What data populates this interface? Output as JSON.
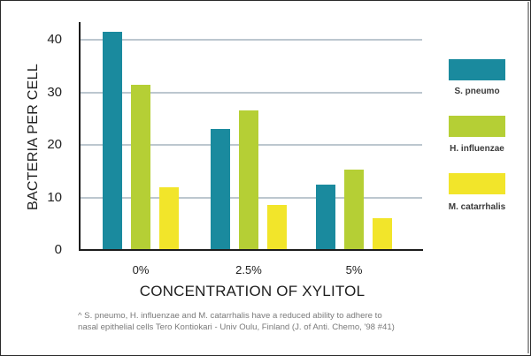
{
  "chart_data": {
    "type": "bar",
    "title": "",
    "xlabel": "CONCENTRATION OF XYLITOL",
    "ylabel": "BACTERIA PER CELL",
    "categories": [
      "0%",
      "2.5%",
      "5%"
    ],
    "series": [
      {
        "name": "S. pneumo",
        "color": "#1a8a9e",
        "values": [
          41.5,
          23,
          12.5
        ]
      },
      {
        "name": "H. influenzae",
        "color": "#b5cf35",
        "values": [
          31.5,
          26.5,
          15.3
        ]
      },
      {
        "name": "M. catarrhalis",
        "color": "#f2e52a",
        "values": [
          12,
          8.5,
          6
        ]
      }
    ],
    "yticks": [
      0,
      10,
      20,
      30,
      40
    ],
    "ylim": [
      0,
      43
    ],
    "grid": true,
    "legend_position": "right",
    "footnote": "^ S. pneumo, H. influenzae and M. catarrhalis have a reduced ability to adhere to nasal epithelial cells Tero Kontiokari - Univ Oulu, Finland (J. of Anti. Chemo, '98 #41)"
  },
  "axis": {
    "y_title": "BACTERIA PER CELL",
    "x_title": "CONCENTRATION OF XYLITOL",
    "yticks": [
      "0",
      "10",
      "20",
      "30",
      "40"
    ],
    "xticks": [
      "0%",
      "2.5%",
      "5%"
    ]
  },
  "legend": {
    "items": [
      {
        "label": "S. pneumo",
        "color": "#1a8a9e"
      },
      {
        "label": "H. influenzae",
        "color": "#b5cf35"
      },
      {
        "label": "M. catarrhalis",
        "color": "#f2e52a"
      }
    ]
  },
  "footnote": {
    "line1": "^ S. pneumo, H. influenzae and M. catarrhalis have a reduced ability to adhere to",
    "line2": "nasal epithelial cells Tero Kontiokari - Univ Oulu, Finland (J. of Anti. Chemo, '98 #41)"
  },
  "colors": {
    "teal": "#1a8a9e",
    "green": "#b5cf35",
    "yellow": "#f2e52a",
    "grid": "#bcc7cf",
    "axis": "#1c1c1c"
  }
}
